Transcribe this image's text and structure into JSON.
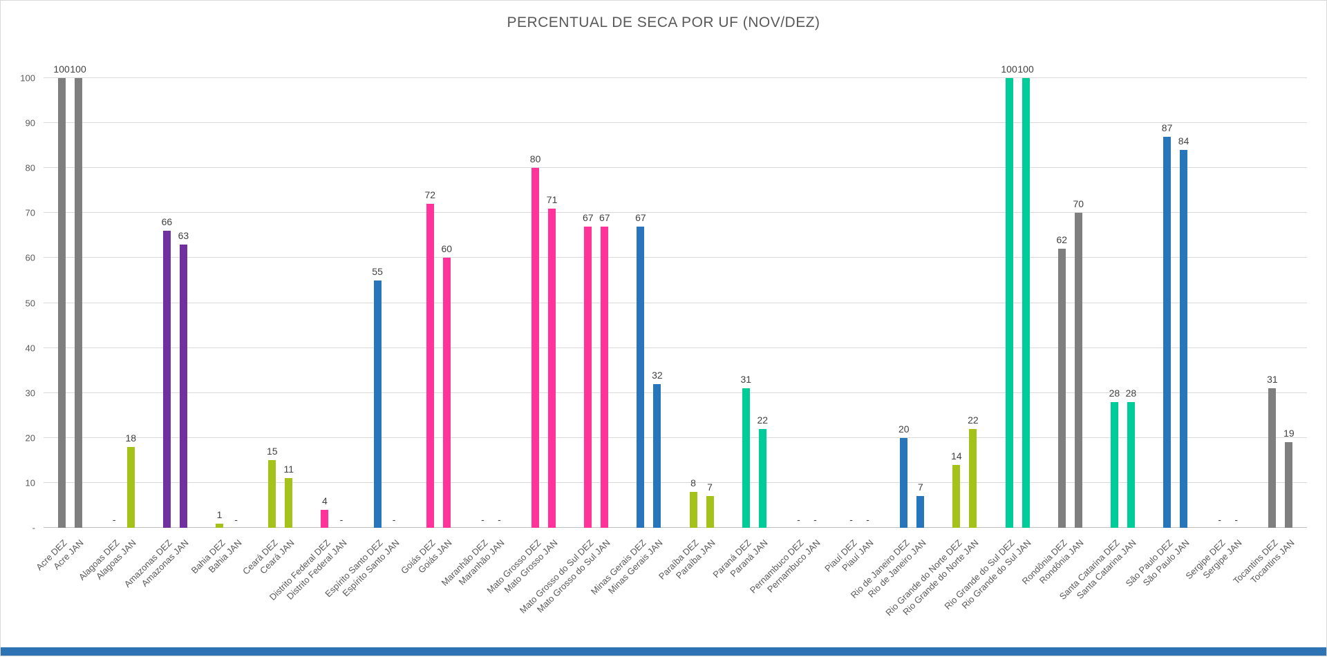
{
  "window": {
    "bottom_bar_color": "#2e74b5",
    "background_color": "#ffffff"
  },
  "chart_data": {
    "type": "bar",
    "title": "PERCENTUAL DE SECA POR UF (NOV/DEZ)",
    "xlabel": "",
    "ylabel": "",
    "ylim": [
      0,
      100
    ],
    "yticks": [
      0,
      10,
      20,
      30,
      40,
      50,
      60,
      70,
      80,
      90,
      100
    ],
    "ytick_labels": [
      "-",
      "10",
      "20",
      "30",
      "40",
      "50",
      "60",
      "70",
      "80",
      "90",
      "100"
    ],
    "null_label": "-",
    "grid": true,
    "legend": "none",
    "categories": [
      "Acre DEZ",
      "Acre JAN",
      "Alagoas DEZ",
      "Alagoas JAN",
      "Amazonas DEZ",
      "Amazonas JAN",
      "Bahia DEZ",
      "Bahia JAN",
      "Ceará DEZ",
      "Ceará JAN",
      "Distrito Federal DEZ",
      "Distrito Federal JAN",
      "Espírito Santo DEZ",
      "Espírito Santo JAN",
      "Goiás DEZ",
      "Goiás JAN",
      "Maranhão DEZ",
      "Maranhão JAN",
      "Mato Grosso DEZ",
      "Mato Grosso JAN",
      "Mato Grosso do Sul DEZ",
      "Mato Grosso do Sul JAN",
      "Minas Gerais DEZ",
      "Minas Gerais JAN",
      "Paraíba DEZ",
      "Paraíba JAN",
      "Paraná DEZ",
      "Paraná JAN",
      "Pernambuco DEZ",
      "Pernambuco JAN",
      "Piauí DEZ",
      "Piauí JAN",
      "Rio de Janeiro DEZ",
      "Rio de Janeiro JAN",
      "Rio Grande do Norte DEZ",
      "Rio Grande do Norte JAN",
      "Rio Grande do Sul DEZ",
      "Rio Grande do Sul JAN",
      "Rondônia DEZ",
      "Rondônia JAN",
      "Santa Catarina DEZ",
      "Santa Catarina JAN",
      "São Paulo DEZ",
      "São Paulo JAN",
      "Sergipe DEZ",
      "Sergipe JAN",
      "Tocantins DEZ",
      "Tocantins JAN"
    ],
    "values": [
      100,
      100,
      null,
      18,
      66,
      63,
      1,
      null,
      15,
      11,
      4,
      null,
      55,
      null,
      72,
      60,
      null,
      null,
      80,
      71,
      67,
      67,
      67,
      32,
      8,
      7,
      31,
      22,
      null,
      null,
      null,
      null,
      20,
      7,
      14,
      22,
      100,
      100,
      62,
      70,
      28,
      28,
      87,
      84,
      null,
      null,
      31,
      19
    ],
    "colors": [
      "#7f7f7f",
      "#7f7f7f",
      "#a4c21a",
      "#a4c21a",
      "#7030a0",
      "#7030a0",
      "#a4c21a",
      "#a4c21a",
      "#a4c21a",
      "#a4c21a",
      "#ff3399",
      "#ff3399",
      "#2775bb",
      "#2775bb",
      "#ff3399",
      "#ff3399",
      "#7f7f7f",
      "#7f7f7f",
      "#ff3399",
      "#ff3399",
      "#ff3399",
      "#ff3399",
      "#2775bb",
      "#2775bb",
      "#a4c21a",
      "#a4c21a",
      "#00cc99",
      "#00cc99",
      "#7f7f7f",
      "#7f7f7f",
      "#7f7f7f",
      "#7f7f7f",
      "#2775bb",
      "#2775bb",
      "#a4c21a",
      "#a4c21a",
      "#00cc99",
      "#00cc99",
      "#7f7f7f",
      "#7f7f7f",
      "#00cc99",
      "#00cc99",
      "#2775bb",
      "#2775bb",
      "#7f7f7f",
      "#7f7f7f",
      "#7f7f7f",
      "#7f7f7f"
    ]
  }
}
